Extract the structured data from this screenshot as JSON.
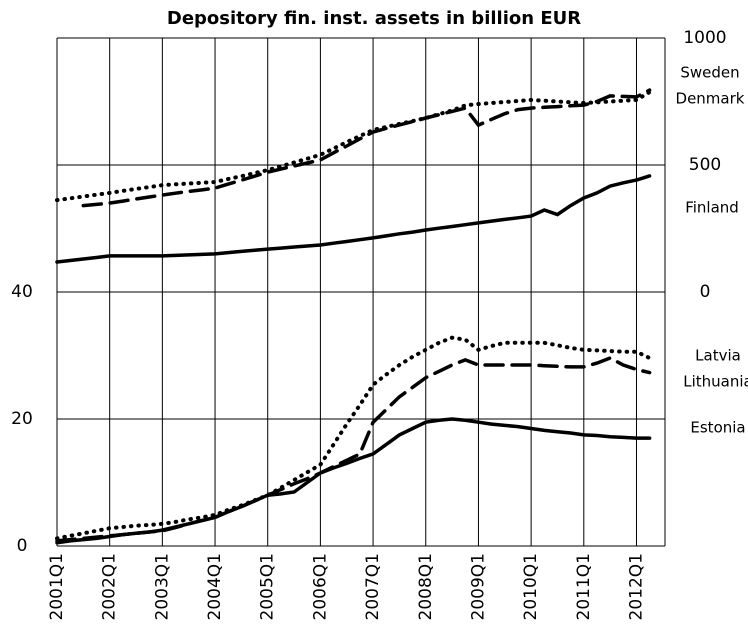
{
  "chart_data": [
    {
      "type": "line",
      "title": "Depository fin. inst. assets in billion EUR",
      "y2lim": [
        0,
        1000
      ],
      "y2ticks": [
        0,
        500,
        1000
      ],
      "grid": true,
      "series": [
        {
          "name": "Sweden",
          "color": "#000000",
          "style": "dotted",
          "axis": "y2",
          "values": [
            362,
            369,
            376,
            383,
            390,
            398,
            406,
            413,
            421,
            424,
            427,
            430,
            433,
            445,
            456,
            468,
            480,
            495,
            510,
            525,
            540,
            565,
            590,
            614,
            638,
            650,
            662,
            673,
            685,
            700,
            715,
            735,
            740,
            744,
            748,
            752,
            756,
            753,
            750,
            747,
            744,
            747,
            750,
            753,
            756,
            787
          ]
        },
        {
          "name": "Denmark",
          "color": "#000000",
          "style": "dashed",
          "axis": "y2",
          "values": [
            null,
            null,
            340,
            345,
            350,
            358,
            366,
            374,
            382,
            389,
            396,
            402,
            409,
            425,
            440,
            456,
            472,
            484,
            496,
            508,
            520,
            548,
            575,
            603,
            630,
            644,
            658,
            671,
            685,
            698,
            711,
            724,
            657,
            680,
            702,
            718,
            724,
            727,
            730,
            733,
            736,
            750,
            772,
            770,
            768,
            795
          ]
        },
        {
          "name": "Finland",
          "color": "#000000",
          "style": "solid",
          "axis": "y2",
          "values": [
            118,
            124,
            130,
            136,
            142,
            142,
            142,
            142,
            142,
            144,
            146,
            148,
            150,
            155,
            160,
            164,
            169,
            173,
            177,
            181,
            185,
            192,
            199,
            206,
            213,
            221,
            229,
            236,
            244,
            251,
            258,
            265,
            272,
            279,
            286,
            292,
            299,
            323,
            305,
            340,
            370,
            390,
            417,
            430,
            441,
            457
          ]
        }
      ]
    },
    {
      "type": "line",
      "categories": [
        "2001Q1",
        null,
        null,
        null,
        "2002Q1",
        null,
        null,
        null,
        "2003Q1",
        null,
        null,
        null,
        "2004Q1",
        null,
        null,
        null,
        "2005Q1",
        null,
        null,
        null,
        "2006Q1",
        null,
        null,
        null,
        "2007Q1",
        null,
        null,
        null,
        "2008Q1",
        null,
        null,
        null,
        "2009Q1",
        null,
        null,
        null,
        "2010Q1",
        null,
        null,
        null,
        "2011Q1",
        null,
        null,
        null,
        "2012Q1",
        null
      ],
      "ylim": [
        0,
        40
      ],
      "yticks": [
        0,
        20,
        40
      ],
      "grid": true,
      "series": [
        {
          "name": "Latvia",
          "color": "#000000",
          "style": "dotted",
          "values": [
            1.2,
            1.6,
            2.0,
            2.4,
            2.8,
            3.0,
            3.2,
            3.3,
            3.5,
            3.8,
            4.2,
            4.5,
            4.9,
            5.7,
            6.4,
            7.2,
            8.0,
            9.2,
            10.4,
            11.6,
            12.8,
            16,
            19.2,
            22.2,
            25.4,
            27,
            28.5,
            29.8,
            30.9,
            32,
            32.8,
            32.5,
            30.9,
            31.5,
            32,
            32,
            32,
            32,
            31.6,
            31.2,
            30.9,
            30.8,
            30.7,
            30.6,
            30.6,
            29.6
          ]
        },
        {
          "name": "Lithuania",
          "color": "#000000",
          "style": "dashed",
          "values": [
            0.8,
            1.0,
            1.2,
            1.4,
            1.6,
            1.8,
            2.0,
            2.2,
            2.4,
            2.9,
            3.5,
            4.0,
            4.5,
            5.4,
            6.2,
            7.1,
            8.0,
            8.9,
            9.8,
            10.6,
            11.5,
            12.5,
            13.5,
            14.5,
            19.5,
            21.5,
            23.5,
            25,
            26.5,
            27.5,
            28.5,
            29.3,
            28.5,
            28.5,
            28.5,
            28.5,
            28.5,
            28.4,
            28.3,
            28.2,
            28.2,
            28.8,
            29.6,
            28.5,
            27.8,
            27.3
          ]
        },
        {
          "name": "Estonia",
          "color": "#000000",
          "style": "solid",
          "values": [
            0.5,
            0.8,
            1.0,
            1.2,
            1.5,
            1.8,
            2.0,
            2.2,
            2.5,
            3.0,
            3.5,
            4.0,
            4.5,
            5.4,
            6.2,
            7.1,
            8.0,
            8.2,
            8.5,
            10,
            11.5,
            12.3,
            13,
            13.8,
            14.5,
            16,
            17.5,
            18.5,
            19.5,
            19.8,
            20.0,
            19.8,
            19.5,
            19.2,
            19.0,
            18.8,
            18.5,
            18.2,
            18.0,
            17.8,
            17.5,
            17.4,
            17.2,
            17.1,
            17.0,
            17.0
          ]
        }
      ]
    }
  ]
}
